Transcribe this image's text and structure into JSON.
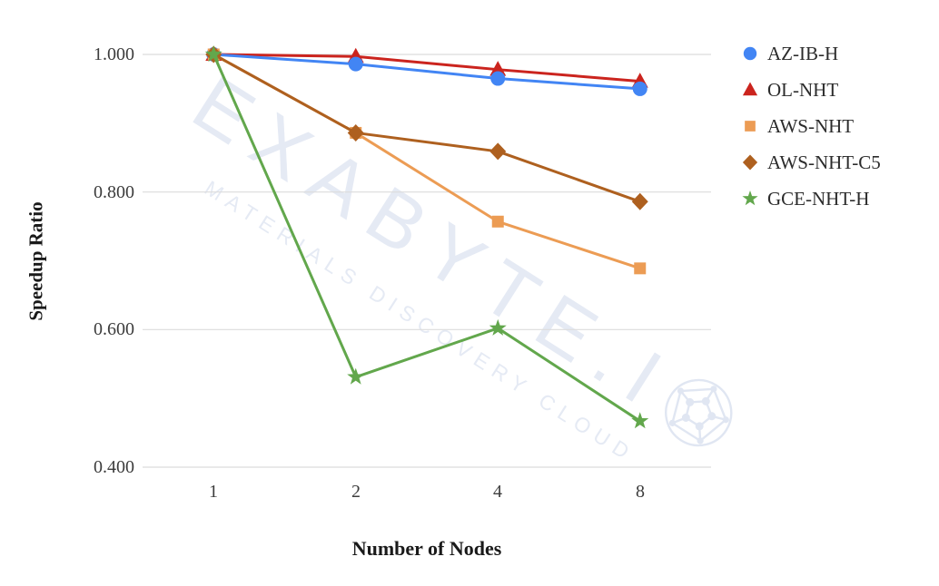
{
  "chart_data": {
    "type": "line",
    "title": "",
    "xlabel": "Number of Nodes",
    "ylabel": "Speedup Ratio",
    "categories": [
      "1",
      "2",
      "4",
      "8"
    ],
    "ylim": [
      0.4,
      1.0
    ],
    "yticks": [
      1.0,
      0.8,
      0.6,
      0.4
    ],
    "ytick_labels": [
      "1.000",
      "0.800",
      "0.600",
      "0.400"
    ],
    "grid": "horizontal",
    "legend_position": "right",
    "series": [
      {
        "name": "AZ-IB-H",
        "marker": "circle",
        "color": "#4285f4",
        "values": [
          1.0,
          0.986,
          0.965,
          0.95
        ]
      },
      {
        "name": "OL-NHT",
        "marker": "triangle",
        "color": "#cb241e",
        "values": [
          1.0,
          0.997,
          0.978,
          0.961
        ]
      },
      {
        "name": "AWS-NHT",
        "marker": "square",
        "color": "#ec9c54",
        "values": [
          1.0,
          0.886,
          0.757,
          0.689
        ]
      },
      {
        "name": "AWS-NHT-C5",
        "marker": "diamond",
        "color": "#ae601f",
        "values": [
          1.0,
          0.886,
          0.859,
          0.786
        ]
      },
      {
        "name": "GCE-NHT-H",
        "marker": "star",
        "color": "#62a74c",
        "values": [
          1.0,
          0.531,
          0.602,
          0.467
        ]
      }
    ]
  },
  "watermark": {
    "brand": "EXABYTE.I",
    "tagline": "MATERIALS DISCOVERY CLOUD",
    "color": "#e5eaf4"
  },
  "colors": {
    "gridline": "#dcdcdc",
    "tick_text": "#3c3c3c",
    "background": "#ffffff"
  }
}
